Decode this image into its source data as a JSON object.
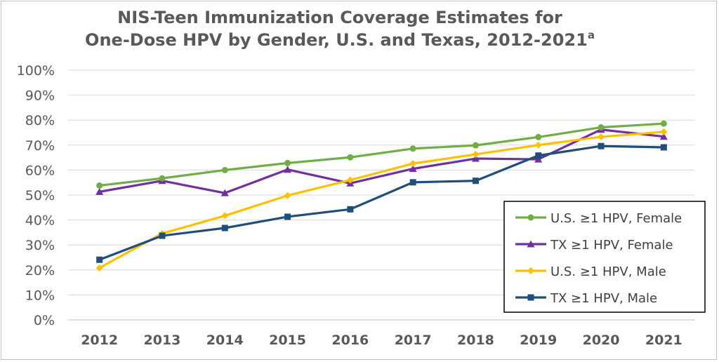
{
  "chart_data": {
    "type": "line",
    "title_line1": "NIS-Teen Immunization Coverage Estimates for",
    "title_line2": "One-Dose HPV by Gender, U.S. and Texas, 2012-2021",
    "title_superscript": "a",
    "xlabel": "",
    "ylabel": "",
    "x": [
      "2012",
      "2013",
      "2014",
      "2015",
      "2016",
      "2017",
      "2018",
      "2019",
      "2020",
      "2021"
    ],
    "ylim": [
      0,
      100
    ],
    "yticks": [
      "0%",
      "10%",
      "20%",
      "30%",
      "40%",
      "50%",
      "60%",
      "70%",
      "80%",
      "90%",
      "100%"
    ],
    "grid": true,
    "legend_position": "bottom-right",
    "series": [
      {
        "name": "U.S. ≥1 HPV, Female",
        "color": "#70ad47",
        "marker": "circle",
        "values": [
          53.8,
          56.7,
          60.0,
          62.8,
          65.1,
          68.6,
          69.9,
          73.2,
          77.1,
          78.6
        ]
      },
      {
        "name": "TX ≥1 HPV, Female",
        "color": "#7030a0",
        "marker": "triangle",
        "values": [
          51.3,
          55.7,
          50.8,
          60.2,
          54.7,
          60.5,
          64.6,
          64.3,
          76.2,
          73.4
        ]
      },
      {
        "name": "U.S. ≥1 HPV, Male",
        "color": "#ffc000",
        "marker": "diamond",
        "values": [
          20.8,
          34.6,
          41.7,
          49.8,
          56.0,
          62.6,
          66.3,
          70.0,
          73.3,
          75.3
        ]
      },
      {
        "name": "TX ≥1 HPV, Male",
        "color": "#1f4e79",
        "marker": "square",
        "values": [
          24.1,
          33.7,
          36.8,
          41.3,
          44.3,
          55.1,
          55.7,
          65.8,
          69.6,
          69.1
        ]
      }
    ]
  }
}
